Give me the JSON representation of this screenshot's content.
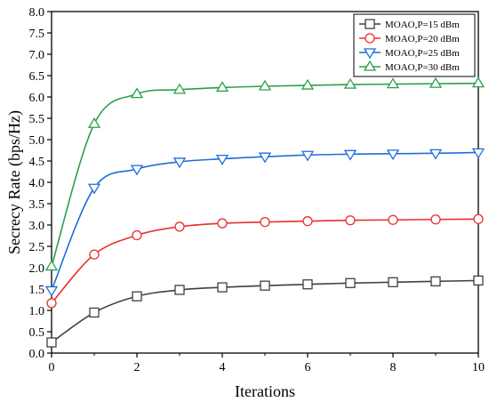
{
  "chart_data": {
    "type": "line",
    "xlabel": "Iterations",
    "ylabel": "Secrecy Rate (bps/Hz)",
    "xlim": [
      0,
      10
    ],
    "ylim": [
      0,
      8.0
    ],
    "x_ticks": [
      "0",
      "2",
      "4",
      "6",
      "8",
      "10"
    ],
    "y_ticks": [
      "0.0",
      "0.5",
      "1.0",
      "1.5",
      "2.0",
      "2.5",
      "3.0",
      "3.5",
      "4.0",
      "4.5",
      "5.0",
      "5.5",
      "6.0",
      "6.5",
      "7.0",
      "7.5",
      "8.0"
    ],
    "grid": false,
    "legend_position": "top-right",
    "x": [
      0,
      1,
      2,
      3,
      4,
      5,
      6,
      7,
      8,
      9,
      10
    ],
    "series": [
      {
        "name": "MOAO,P=15 dBm",
        "color": "#404040",
        "marker": "square",
        "values": [
          0.25,
          0.95,
          1.33,
          1.48,
          1.54,
          1.58,
          1.61,
          1.64,
          1.66,
          1.68,
          1.7
        ]
      },
      {
        "name": "MOAO,P=20 dBm",
        "color": "#e8302e",
        "marker": "circle",
        "values": [
          1.17,
          2.31,
          2.76,
          2.96,
          3.04,
          3.07,
          3.09,
          3.11,
          3.12,
          3.13,
          3.14
        ]
      },
      {
        "name": "MOAO,P=25 dBm",
        "color": "#1f6fd6",
        "marker": "triangle-down",
        "values": [
          1.47,
          3.87,
          4.31,
          4.48,
          4.55,
          4.6,
          4.64,
          4.66,
          4.67,
          4.68,
          4.7
        ]
      },
      {
        "name": "MOAO,P=30 dBm",
        "color": "#2aa04a",
        "marker": "triangle-up",
        "values": [
          2.03,
          5.37,
          6.07,
          6.17,
          6.22,
          6.25,
          6.27,
          6.29,
          6.3,
          6.31,
          6.32
        ]
      }
    ]
  }
}
